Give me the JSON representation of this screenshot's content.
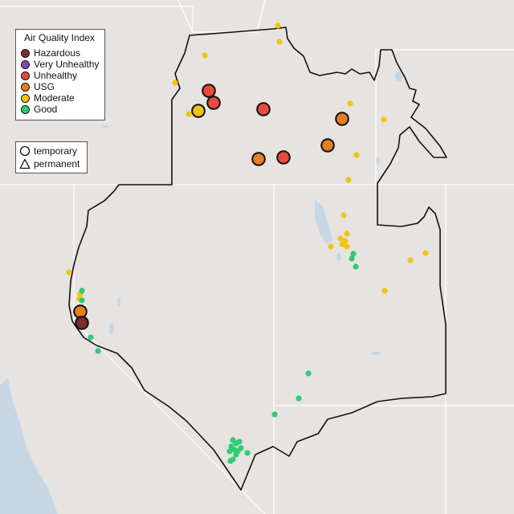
{
  "legend_aqi": {
    "title": "Air Quality Index",
    "items": [
      {
        "label": "Hazardous",
        "color": "#7a2e2e"
      },
      {
        "label": "Very Unhealthy",
        "color": "#8e44ad"
      },
      {
        "label": "Unhealthy",
        "color": "#e74c3c"
      },
      {
        "label": "USG",
        "color": "#e67e22"
      },
      {
        "label": "Moderate",
        "color": "#f1c40f"
      },
      {
        "label": "Good",
        "color": "#2ecc71"
      }
    ]
  },
  "legend_monitor": {
    "items": [
      {
        "label": "temporary",
        "icon": "circle-outline-icon"
      },
      {
        "label": "permanent",
        "icon": "triangle-outline-icon"
      }
    ]
  },
  "colors": {
    "land": "#e6e3e1",
    "water": "#c7d7e6",
    "border": "#111111",
    "state_lines": "#ffffff"
  }
}
